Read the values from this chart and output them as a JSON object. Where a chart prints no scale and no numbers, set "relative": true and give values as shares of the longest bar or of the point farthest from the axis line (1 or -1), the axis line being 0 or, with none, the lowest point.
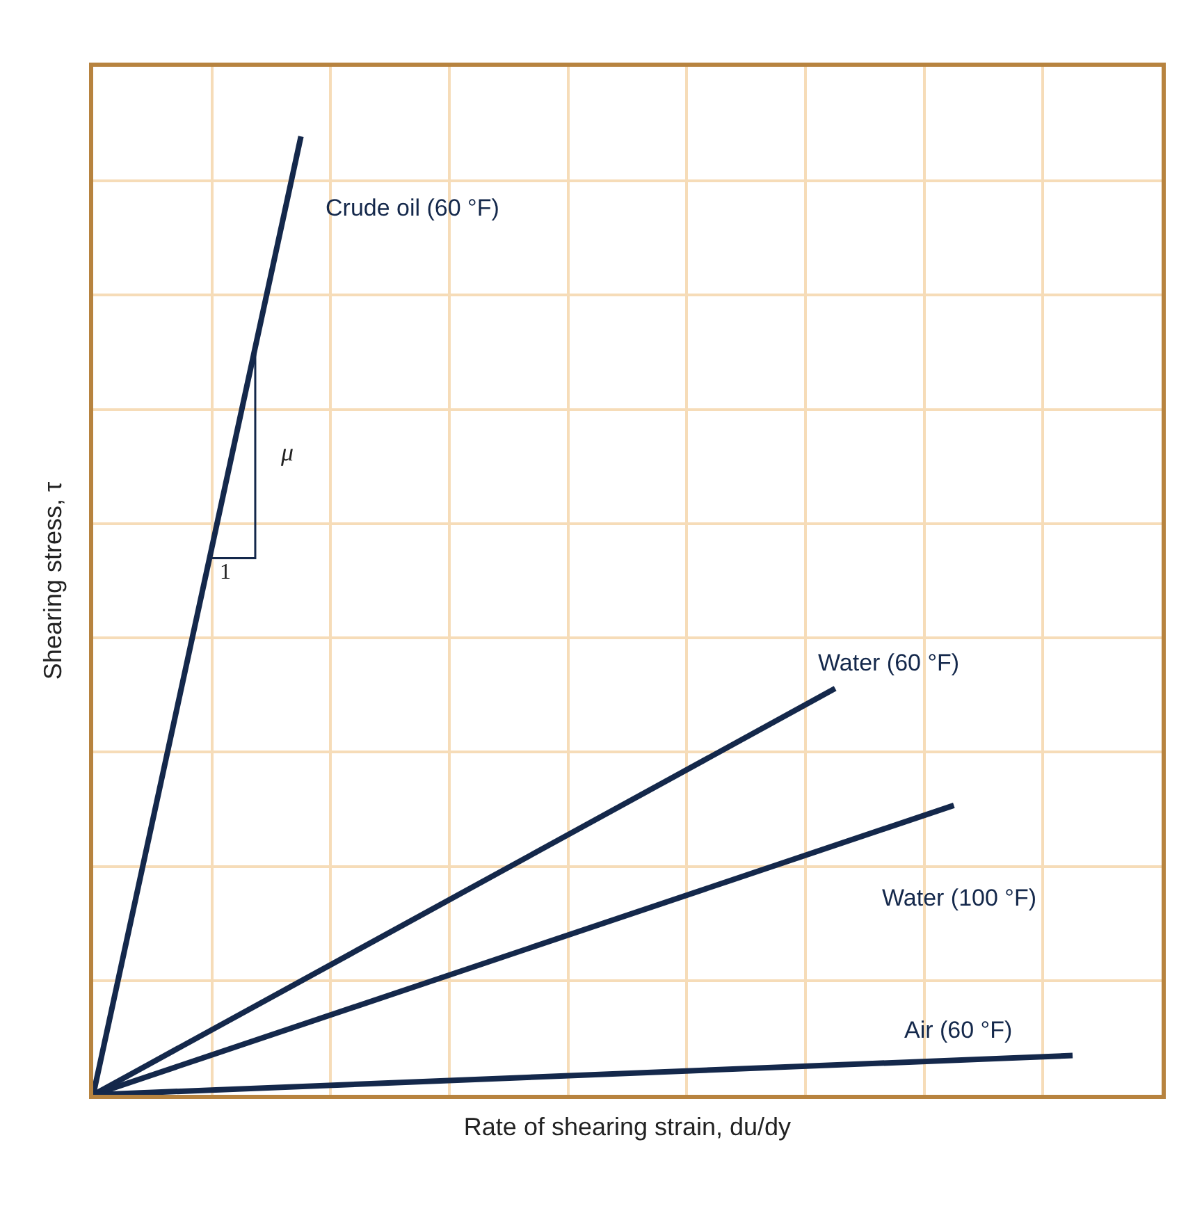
{
  "chart_data": {
    "type": "line",
    "relative": true,
    "xlabel": "Rate of shearing strain, du/dy",
    "ylabel": "Shearing stress, τ",
    "grid": true,
    "legend": false,
    "marker": "none",
    "line_style": "solid",
    "categories": [
      null,
      null,
      null,
      null,
      null,
      null,
      null,
      null,
      null,
      null,
      null,
      null,
      null,
      null,
      null,
      null,
      null,
      null,
      null,
      null,
      null,
      null,
      null,
      null,
      null,
      null,
      null,
      null,
      null,
      null,
      null,
      null,
      null,
      null,
      null,
      null,
      null
    ],
    "series": [
      {
        "name": "Crude oil (60 °F)",
        "color": "#14284b",
        "values": [
          0,
          null,
          null,
          null,
          null,
          null,
          null,
          1,
          null,
          null,
          null,
          null,
          null,
          null,
          null,
          null,
          null,
          null,
          null,
          null,
          null,
          null,
          null,
          null,
          null,
          null,
          null,
          null,
          null,
          null,
          null,
          null,
          null,
          null,
          null,
          null,
          null
        ]
      },
      {
        "name": "Water (60 °F)",
        "color": "#14284b",
        "values": [
          0,
          null,
          null,
          null,
          null,
          null,
          null,
          null,
          null,
          null,
          null,
          null,
          null,
          null,
          null,
          null,
          null,
          null,
          null,
          null,
          null,
          null,
          null,
          null,
          null,
          0.424,
          null,
          null,
          null,
          null,
          null,
          null,
          null,
          null,
          null,
          null,
          null
        ]
      },
      {
        "name": "Water (100 °F)",
        "color": "#14284b",
        "values": [
          0,
          null,
          null,
          null,
          null,
          null,
          null,
          null,
          null,
          null,
          null,
          null,
          null,
          null,
          null,
          null,
          null,
          null,
          null,
          null,
          null,
          null,
          null,
          null,
          null,
          null,
          null,
          null,
          null,
          0.302,
          null,
          null,
          null,
          null,
          null,
          null,
          null
        ]
      },
      {
        "name": "Air (60 °F)",
        "color": "#14284b",
        "values": [
          0,
          null,
          null,
          null,
          null,
          null,
          null,
          null,
          null,
          null,
          null,
          null,
          null,
          null,
          null,
          null,
          null,
          null,
          null,
          null,
          null,
          null,
          null,
          null,
          null,
          null,
          null,
          null,
          null,
          null,
          null,
          null,
          null,
          0.041,
          null,
          null,
          null
        ]
      }
    ],
    "annotations": [
      "μ",
      "1"
    ]
  }
}
